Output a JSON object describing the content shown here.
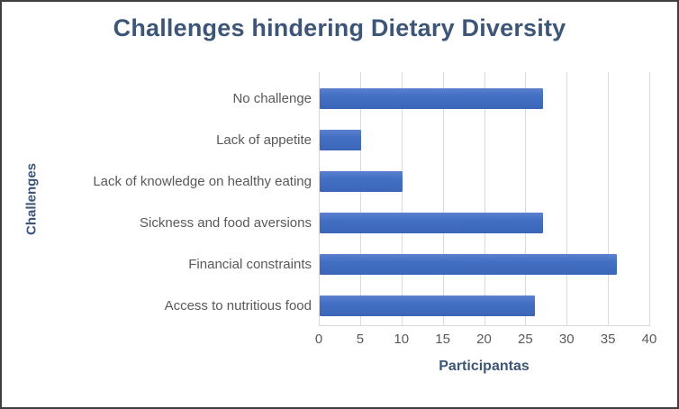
{
  "window": {
    "background": "#ffffff",
    "border_color": "#3f3f3f"
  },
  "chart_data": {
    "type": "bar",
    "orientation": "horizontal",
    "title": "Challenges hindering Dietary Diversity",
    "categories": [
      "No challenge",
      "Lack of appetite",
      "Lack of knowledge on healthy eating",
      "Sickness and food aversions",
      "Financial constraints",
      "Access to nutritious food"
    ],
    "values": [
      27,
      5,
      10,
      27,
      36,
      26
    ],
    "xlabel": "Participantas",
    "ylabel": "Challenges",
    "xlim": [
      0,
      40
    ],
    "xticks": [
      0,
      5,
      10,
      15,
      20,
      25,
      30,
      35,
      40
    ],
    "grid": "vertical-only",
    "legend": "none",
    "colors": {
      "bar": "#4472c4",
      "bar_gradient_top": "#5b81cf",
      "bar_gradient_bottom": "#3b66b8",
      "title_text": "#3d5677",
      "axis_title_text": "#3d5677",
      "tick_text": "#595959",
      "gridline": "#d9d9d9"
    }
  }
}
